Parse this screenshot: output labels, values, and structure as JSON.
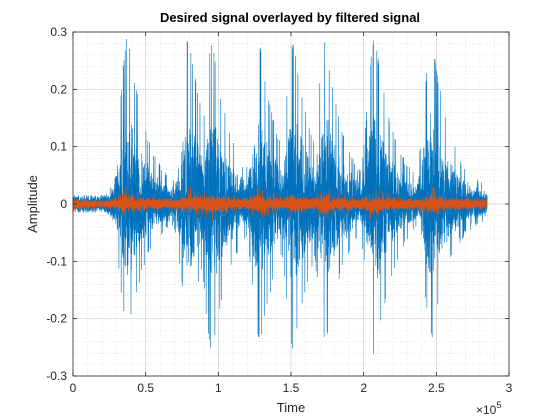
{
  "chart_data": {
    "type": "line",
    "title": "Desired signal overlayed by filtered signal",
    "xlabel": "Time",
    "ylabel": "Amplitude",
    "xlim": [
      0,
      300000
    ],
    "ylim": [
      -0.3,
      0.3
    ],
    "x_tick_values": [
      0,
      0.5,
      1,
      1.5,
      2,
      2.5,
      3
    ],
    "x_tick_labels": [
      "0",
      "0.5",
      "1",
      "1.5",
      "2",
      "2.5",
      "3"
    ],
    "x_exponent_label": "×10",
    "x_exponent_power": "5",
    "y_tick_values": [
      -0.3,
      -0.2,
      -0.1,
      0,
      0.1,
      0.2,
      0.3
    ],
    "y_tick_labels": [
      "-0.3",
      "-0.2",
      "-0.1",
      "0",
      "0.1",
      "0.2",
      "0.3"
    ],
    "grid": true,
    "minor_grid": true,
    "signal_extent": [
      0,
      285000
    ],
    "bursts": [
      {
        "center": 38000,
        "width": 15000,
        "peak_high": 0.285,
        "peak_low": -0.215
      },
      {
        "center": 80000,
        "width": 15000,
        "peak_high": 0.28,
        "peak_low": -0.2
      },
      {
        "center": 96000,
        "width": 15000,
        "peak_high": 0.27,
        "peak_low": -0.25
      },
      {
        "center": 129000,
        "width": 15000,
        "peak_high": 0.26,
        "peak_low": -0.23
      },
      {
        "center": 152000,
        "width": 15000,
        "peak_high": 0.27,
        "peak_low": -0.245
      },
      {
        "center": 174000,
        "width": 15000,
        "peak_high": 0.27,
        "peak_low": -0.23
      },
      {
        "center": 208000,
        "width": 15000,
        "peak_high": 0.28,
        "peak_low": -0.26
      },
      {
        "center": 247000,
        "width": 15000,
        "peak_high": 0.28,
        "peak_low": -0.22
      }
    ],
    "series": [
      {
        "color": "#0072BD",
        "baseline_amplitude": 0.012
      },
      {
        "color": "#D95319",
        "baseline_amplitude": 0.007
      }
    ]
  }
}
